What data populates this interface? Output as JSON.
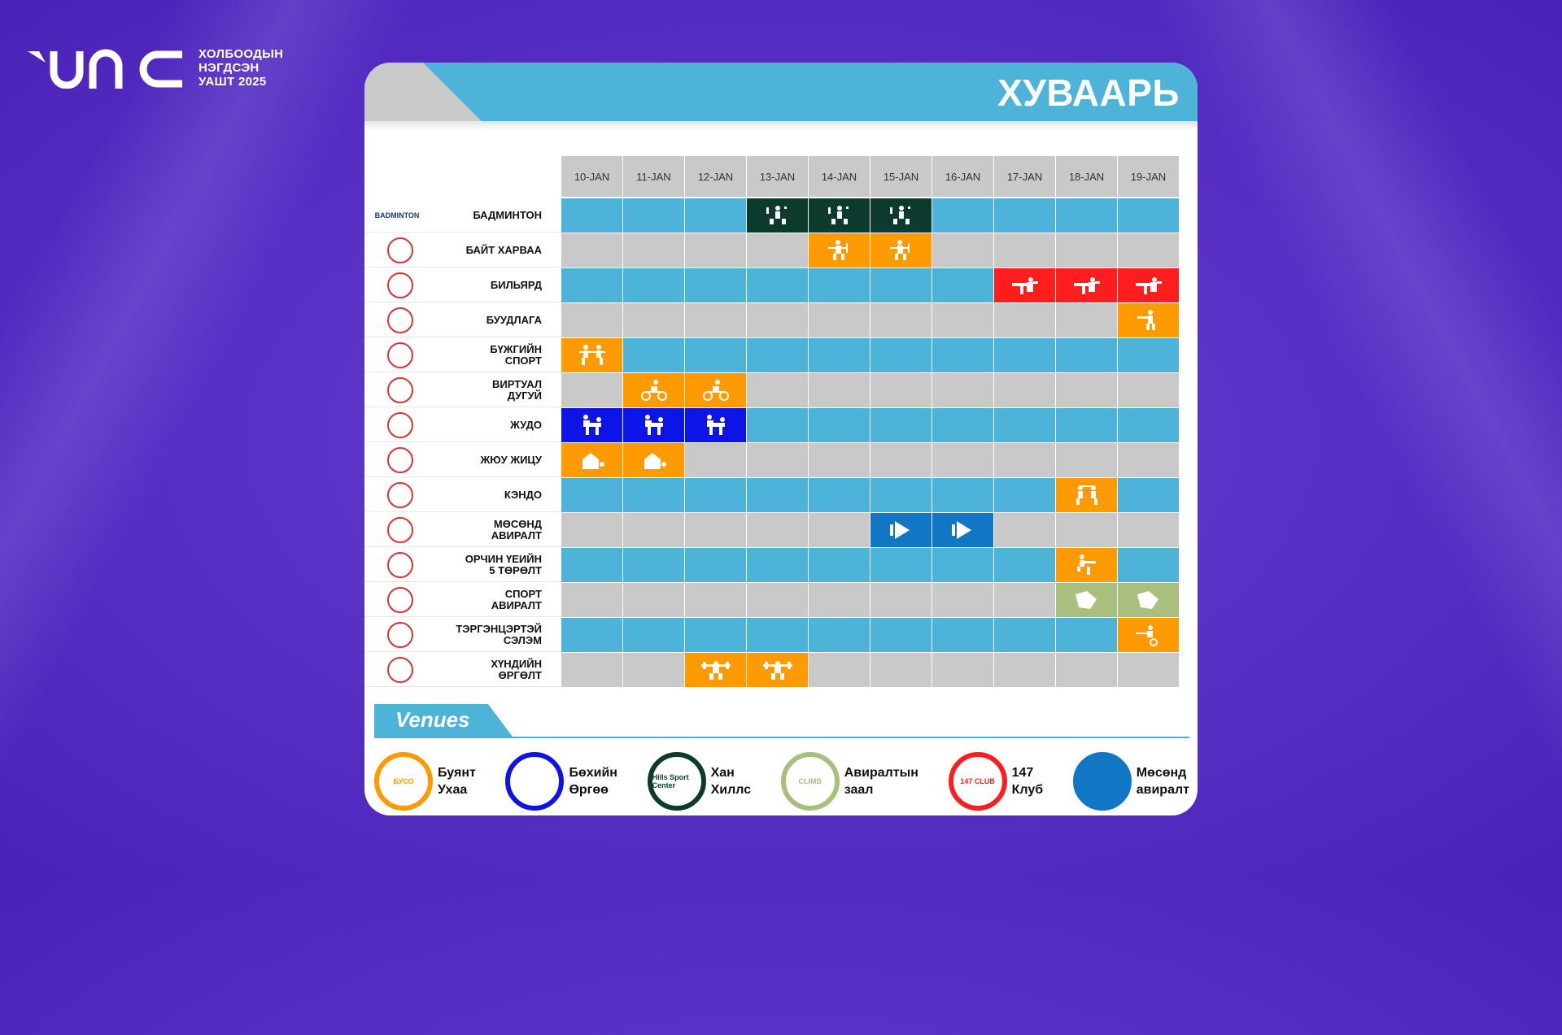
{
  "brand": {
    "line1": "ХОЛБООДЫН",
    "line2": "НЭГДСЭН",
    "line3": "УАШТ 2025"
  },
  "title": "ХУВААРЬ",
  "dates": [
    "10-JAN",
    "11-JAN",
    "12-JAN",
    "13-JAN",
    "14-JAN",
    "15-JAN",
    "16-JAN",
    "17-JAN",
    "18-JAN",
    "19-JAN"
  ],
  "colors": {
    "blue": "#4db3d9",
    "gray": "#c9c9c9",
    "dark": "#0c3b2e",
    "orange": "#ff9a00",
    "red": "#ff1d1d",
    "royal": "#0d14e6",
    "navy": "#1177c4",
    "olive": "#a8bf7e"
  },
  "sports": [
    {
      "name1": "БАДМИНТОН",
      "name2": "",
      "logo": "BADMINTON",
      "events": [
        {
          "day": 3,
          "color": "dark",
          "icon": "badminton-icon"
        },
        {
          "day": 4,
          "color": "dark",
          "icon": "badminton-icon"
        },
        {
          "day": 5,
          "color": "dark",
          "icon": "badminton-icon"
        }
      ]
    },
    {
      "name1": "БАЙТ ХАРВАА",
      "name2": "",
      "logo": "",
      "events": [
        {
          "day": 4,
          "color": "orange",
          "icon": "archery-icon"
        },
        {
          "day": 5,
          "color": "orange",
          "icon": "archery-icon"
        }
      ]
    },
    {
      "name1": "БИЛЬЯРД",
      "name2": "",
      "logo": "",
      "events": [
        {
          "day": 7,
          "color": "red",
          "icon": "billiards-icon"
        },
        {
          "day": 8,
          "color": "red",
          "icon": "billiards-icon"
        },
        {
          "day": 9,
          "color": "red",
          "icon": "billiards-icon"
        }
      ]
    },
    {
      "name1": "БУУДЛАГА",
      "name2": "",
      "logo": "",
      "events": [
        {
          "day": 9,
          "color": "orange",
          "icon": "shooting-icon"
        }
      ]
    },
    {
      "name1": "БҮЖГИЙН",
      "name2": "СПОРТ",
      "logo": "",
      "events": [
        {
          "day": 0,
          "color": "orange",
          "icon": "dance-icon"
        }
      ]
    },
    {
      "name1": "ВИРТУАЛ",
      "name2": "ДУГУЙ",
      "logo": "",
      "events": [
        {
          "day": 1,
          "color": "orange",
          "icon": "cycling-icon"
        },
        {
          "day": 2,
          "color": "orange",
          "icon": "cycling-icon"
        }
      ]
    },
    {
      "name1": "ЖУДО",
      "name2": "",
      "logo": "",
      "events": [
        {
          "day": 0,
          "color": "royal",
          "icon": "judo-icon"
        },
        {
          "day": 1,
          "color": "royal",
          "icon": "judo-icon"
        },
        {
          "day": 2,
          "color": "royal",
          "icon": "judo-icon"
        }
      ]
    },
    {
      "name1": "ЖЮУ ЖИЦУ",
      "name2": "",
      "logo": "",
      "events": [
        {
          "day": 0,
          "color": "orange",
          "icon": "jiujitsu-icon"
        },
        {
          "day": 1,
          "color": "orange",
          "icon": "jiujitsu-icon"
        }
      ]
    },
    {
      "name1": "КЭНДО",
      "name2": "",
      "logo": "",
      "events": [
        {
          "day": 8,
          "color": "orange",
          "icon": "kendo-icon"
        }
      ]
    },
    {
      "name1": "МӨСӨНД",
      "name2": "АВИРАЛТ",
      "logo": "",
      "events": [
        {
          "day": 5,
          "color": "navy",
          "icon": "ice-climbing-icon"
        },
        {
          "day": 6,
          "color": "navy",
          "icon": "ice-climbing-icon"
        }
      ]
    },
    {
      "name1": "ОРЧИН ҮЕИЙН",
      "name2": "5 ТӨРӨЛТ",
      "logo": "",
      "events": [
        {
          "day": 8,
          "color": "orange",
          "icon": "pentathlon-icon"
        }
      ]
    },
    {
      "name1": "СПОРТ",
      "name2": "АВИРАЛТ",
      "logo": "",
      "events": [
        {
          "day": 8,
          "color": "olive",
          "icon": "climbing-icon"
        },
        {
          "day": 9,
          "color": "olive",
          "icon": "climbing-icon"
        }
      ]
    },
    {
      "name1": "ТЭРГЭНЦЭРТЭЙ",
      "name2": "СЭЛЭМ",
      "logo": "",
      "events": [
        {
          "day": 9,
          "color": "orange",
          "icon": "fencing-icon"
        }
      ]
    },
    {
      "name1": "ХҮНДИЙН",
      "name2": "ӨРГӨЛТ",
      "logo": "",
      "events": [
        {
          "day": 2,
          "color": "orange",
          "icon": "weightlifting-icon"
        },
        {
          "day": 3,
          "color": "orange",
          "icon": "weightlifting-icon"
        }
      ]
    }
  ],
  "venues_title": "Venues",
  "venues": [
    {
      "line1": "Буянт",
      "line2": "Ухаа",
      "ring": "#ff9a00",
      "badge": "БУСО"
    },
    {
      "line1": "Бөхийн",
      "line2": "Өргөө",
      "ring": "#0d14e6",
      "badge": ""
    },
    {
      "line1": "Хан",
      "line2": "Хиллс",
      "ring": "#0c3b2e",
      "badge": "Hills Sport Center"
    },
    {
      "line1": "Авиралтын",
      "line2": "заал",
      "ring": "#a8bf7e",
      "badge": "CLIMB"
    },
    {
      "line1": "147",
      "line2": "Клуб",
      "ring": "#ff1d1d",
      "badge": "147 CLUB"
    },
    {
      "line1": "Мөсөнд",
      "line2": "авиралт",
      "ring": "#1177c4",
      "badge": ""
    }
  ]
}
